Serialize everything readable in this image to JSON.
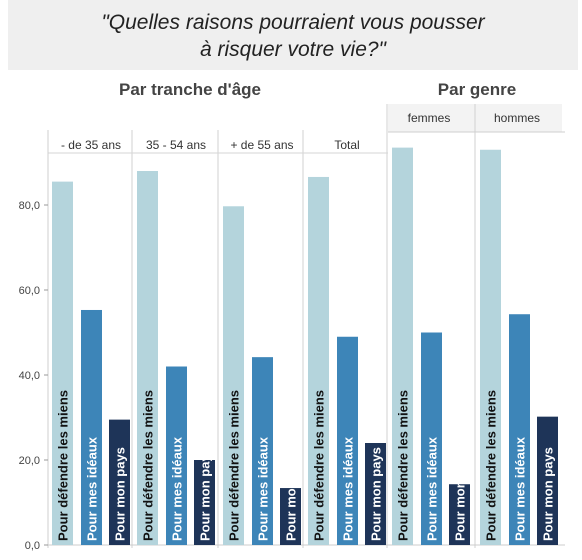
{
  "title_lines": [
    "\"Quelles raisons pourraient vous pousser",
    "à risquer votre vie?\""
  ],
  "chart_data": {
    "type": "bar",
    "group_headers": [
      "Par tranche d'âge",
      "Par genre"
    ],
    "panels": [
      "- de 35 ans",
      "35 - 54 ans",
      "+ de 55 ans",
      "Total",
      "femmes",
      "hommes"
    ],
    "panel_groups": [
      0,
      0,
      0,
      0,
      1,
      1
    ],
    "categories": [
      "Pour défendre les miens",
      "Pour mes idéaux",
      "Pour mon pays"
    ],
    "colors": [
      "#b4d4dc",
      "#3d85b8",
      "#1e3458"
    ],
    "values": [
      [
        85.5,
        55.3,
        29.5
      ],
      [
        88.0,
        42.0,
        20.0
      ],
      [
        79.7,
        44.2,
        13.4
      ],
      [
        86.6,
        49.0,
        24.0
      ],
      [
        93.5,
        50.0,
        14.3
      ],
      [
        93.0,
        54.3,
        30.2
      ]
    ],
    "y_ticks": [
      "0,0",
      "20,0",
      "40,0",
      "60,0",
      "80,0"
    ],
    "ylim": [
      0,
      100
    ],
    "grid": false
  }
}
